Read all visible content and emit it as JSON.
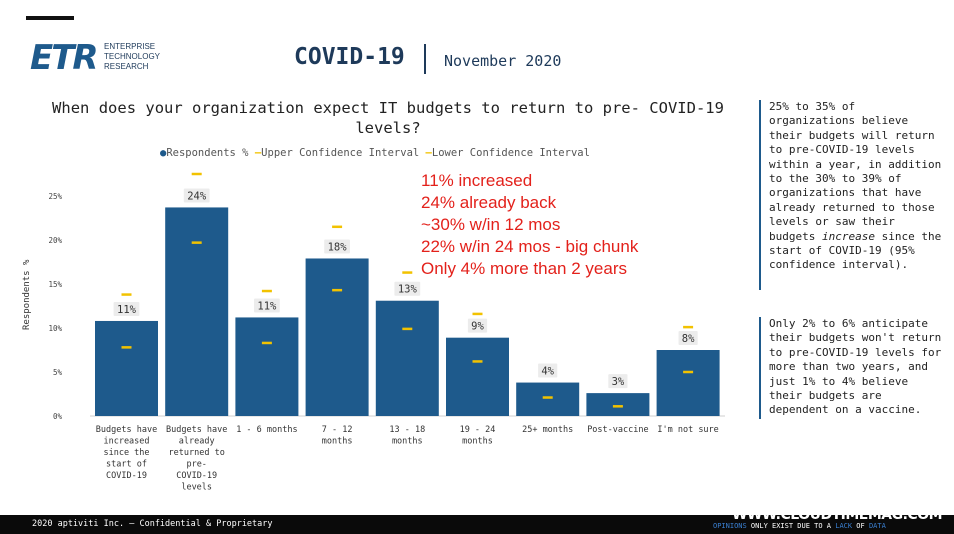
{
  "header": {
    "logo_mark": "ETR",
    "logo_lines": [
      "ENTERPRISE",
      "TECHNOLOGY",
      "RESEARCH"
    ],
    "title": "COVID-19",
    "date": "November 2020"
  },
  "chart_data": {
    "type": "bar",
    "title": "When does your organization expect IT budgets to return to pre- COVID-19 levels?",
    "xlabel": "",
    "ylabel": "Respondents %",
    "ylim": [
      0,
      25
    ],
    "yticks": [
      "0%",
      "5%",
      "10%",
      "15%",
      "20%",
      "25%"
    ],
    "legend": {
      "respondents": "Respondents %",
      "upper": "Upper Confidence Interval",
      "lower": "Lower Confidence Interval",
      "position": "top"
    },
    "categories": [
      "Budgets have increased since the start of COVID-19",
      "Budgets have already returned to pre-COVID-19 levels",
      "1 - 6 months",
      "7 - 12 months",
      "13 - 18 months",
      "19 - 24 months",
      "25+ months",
      "Post-vaccine",
      "I'm not sure"
    ],
    "category_lines": [
      [
        "Budgets have",
        "increased",
        "since the",
        "start of",
        "COVID-19"
      ],
      [
        "Budgets have",
        "already",
        "returned to",
        "pre-",
        "COVID-19",
        "levels"
      ],
      [
        "1 - 6 months"
      ],
      [
        "7 - 12",
        "months"
      ],
      [
        "13 - 18",
        "months"
      ],
      [
        "19 - 24",
        "months"
      ],
      [
        "25+ months"
      ],
      [
        "Post-vaccine"
      ],
      [
        "I'm not sure"
      ]
    ],
    "values": [
      10.8,
      23.7,
      11.2,
      17.9,
      13.1,
      8.9,
      3.8,
      2.6,
      7.5
    ],
    "value_labels": [
      "11%",
      "24%",
      "11%",
      "18%",
      "13%",
      "9%",
      "4%",
      "3%",
      "8%"
    ],
    "upper_ci": [
      13.8,
      27.5,
      14.2,
      21.5,
      16.3,
      11.6,
      5.7,
      4.4,
      10.1
    ],
    "lower_ci": [
      7.8,
      19.7,
      8.3,
      14.3,
      9.9,
      6.2,
      2.1,
      1.1,
      5.0
    ],
    "colors": {
      "bar": "#1e5a8c",
      "ci": "#f2c200"
    }
  },
  "annotation": {
    "lines": [
      "11% increased",
      "24% already back",
      "~30% w/in 12 mos",
      "22% w/in 24 mos - big chunk",
      "Only 4% more than 2 years"
    ]
  },
  "side": {
    "box1_before": "25% to 35% of organizations believe their budgets will return to pre-COVID-19 levels within a year, in addition to the 30% to 39% of organizations that have already returned to those levels or saw their budgets ",
    "box1_em": "increase",
    "box1_after": " since the start of COVID-19 (95% confidence interval).",
    "box2": "Only 2% to 6% anticipate their budgets won't return to pre-COVID-19 levels for more than two years, and just 1% to 4% believe their budgets are dependent on a vaccine."
  },
  "footer": {
    "left": "2020 aptiviti Inc. – Confidential & Proprietary",
    "site": "WWW.CLOUDTIMEMAG.COM",
    "tag_1": "OPINIONS",
    "tag_2": " ONLY EXIST DUE TO A ",
    "tag_3": "LACK",
    "tag_4": " OF ",
    "tag_5": "DATA"
  }
}
